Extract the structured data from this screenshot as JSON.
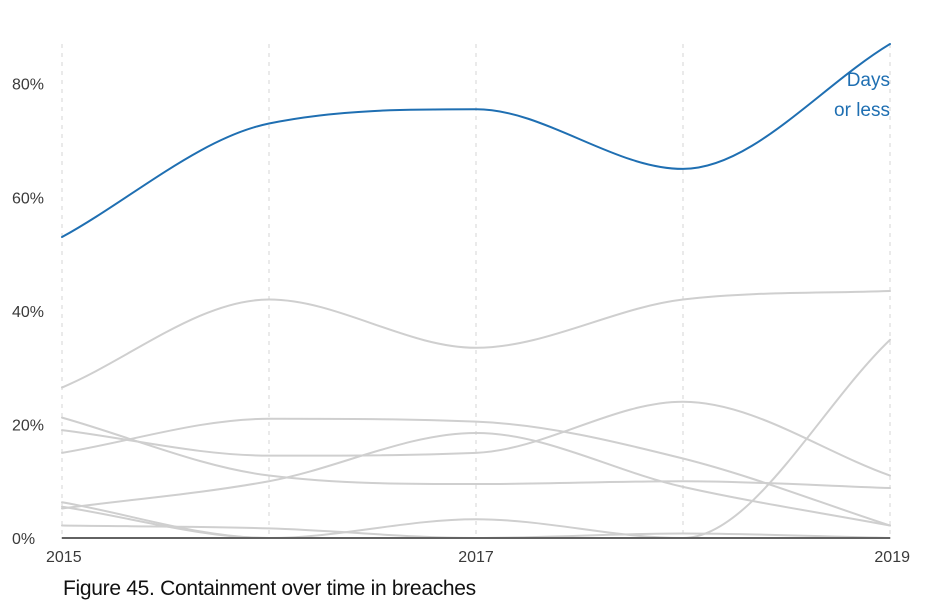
{
  "caption": "Figure 45. Containment over time in breaches",
  "chart_data": {
    "type": "line",
    "x": [
      2015,
      2016,
      2017,
      2018,
      2019
    ],
    "x_tick_labels": [
      {
        "value": 2015,
        "label": "2015"
      },
      {
        "value": 2017,
        "label": "2017"
      },
      {
        "value": 2019,
        "label": "2019"
      }
    ],
    "x_grid_at": [
      2015,
      2016,
      2017,
      2018,
      2019
    ],
    "xlim": [
      2015,
      2019
    ],
    "ylim": [
      0,
      0.87
    ],
    "y_ticks": [
      {
        "value": 0,
        "label": "0%"
      },
      {
        "value": 0.2,
        "label": "20%"
      },
      {
        "value": 0.4,
        "label": "40%"
      },
      {
        "value": 0.6,
        "label": "60%"
      },
      {
        "value": 0.8,
        "label": "80%"
      }
    ],
    "grid": "vertical dashed",
    "highlight_color": "#1f6fb2",
    "muted_color": "#cfcfcf",
    "series": [
      {
        "name": "Days or less",
        "name_lines": [
          "Days",
          "or less"
        ],
        "highlight": true,
        "values": [
          0.53,
          0.73,
          0.755,
          0.65,
          0.87
        ]
      },
      {
        "values": [
          0.265,
          0.42,
          0.335,
          0.42,
          0.435
        ]
      },
      {
        "values": [
          0.0,
          0.0,
          0.0,
          0.0,
          0.349
        ]
      },
      {
        "values": [
          0.212,
          0.11,
          0.095,
          0.1,
          0.088
        ]
      },
      {
        "values": [
          0.19,
          0.145,
          0.15,
          0.24,
          0.11
        ]
      },
      {
        "values": [
          0.15,
          0.21,
          0.205,
          0.14,
          0.022
        ]
      },
      {
        "values": [
          0.052,
          0.1,
          0.185,
          0.09,
          0.022
        ]
      },
      {
        "values": [
          0.022,
          0.017,
          0.0,
          0.008,
          0.0
        ]
      },
      {
        "values": [
          0.063,
          0.0,
          0.0,
          0.0,
          0.0
        ]
      },
      {
        "values": [
          0.055,
          0.0,
          0.033,
          0.0,
          0.0
        ]
      }
    ]
  }
}
